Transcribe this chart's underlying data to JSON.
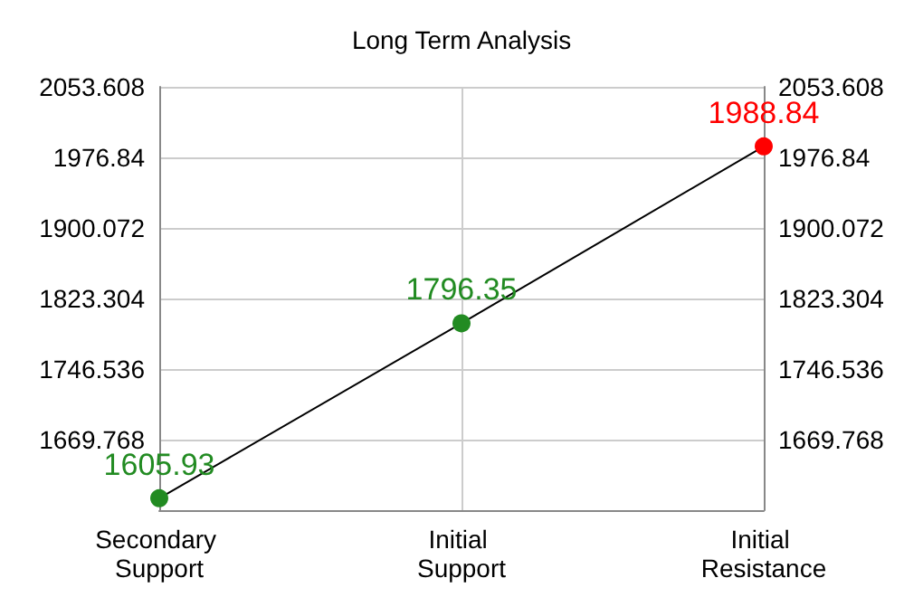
{
  "chart_data": {
    "type": "line",
    "title": "Long Term Analysis",
    "categories": [
      "Secondary Support",
      "Initial Support",
      "Initial Resistance"
    ],
    "series": [
      {
        "color": "#000000",
        "colors": [
          "#228b22",
          "#228b22",
          "#ff0000"
        ],
        "values": [
          1605.93,
          1796.35,
          1988.84
        ]
      }
    ],
    "data_labels": true,
    "marker": "circle",
    "line_style": "solid",
    "grid": true,
    "ylim": [
      1593,
      2053.608
    ],
    "yticks": [
      {
        "value": 1593,
        "label": null
      },
      1669.768,
      1746.536,
      1823.304,
      1900.072,
      1976.84,
      2053.608
    ],
    "y2lim": [
      1593,
      2053.608
    ],
    "y2ticks": [
      {
        "value": 1593,
        "label": null
      },
      1669.768,
      1746.536,
      1823.304,
      1900.072,
      1976.84,
      2053.608
    ]
  }
}
